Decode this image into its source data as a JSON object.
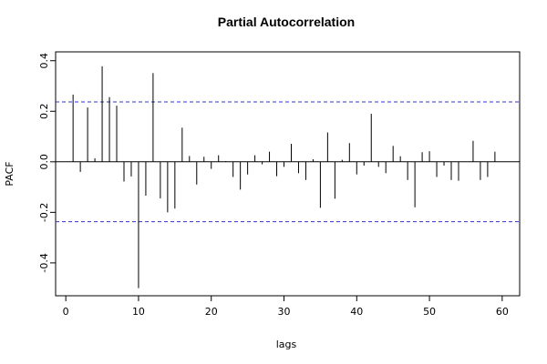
{
  "chart_data": {
    "type": "bar",
    "title": "Partial Autocorrelation",
    "xlabel": "lags",
    "ylabel": "PACF",
    "xlim": [
      -1.4,
      62.4
    ],
    "ylim": [
      -0.53,
      0.435
    ],
    "x_ticks": [
      0,
      10,
      20,
      30,
      40,
      50,
      60
    ],
    "x_tick_labels": [
      "0",
      "10",
      "20",
      "30",
      "40",
      "50",
      "60"
    ],
    "y_ticks": [
      -0.4,
      -0.2,
      0.0,
      0.2,
      0.4
    ],
    "y_tick_labels": [
      "-0.4",
      "-0.2",
      "0.0",
      "0.2",
      "0.4"
    ],
    "confidence_bounds": [
      0.237,
      -0.237
    ],
    "confidence_color": "#3333cc",
    "bar_color": "#000000",
    "grid": false,
    "lags": [
      1,
      2,
      3,
      4,
      5,
      6,
      7,
      8,
      9,
      10,
      11,
      12,
      13,
      14,
      15,
      16,
      17,
      18,
      19,
      20,
      21,
      22,
      23,
      24,
      25,
      26,
      27,
      28,
      29,
      30,
      31,
      32,
      33,
      34,
      35,
      36,
      37,
      38,
      39,
      40,
      41,
      42,
      43,
      44,
      45,
      46,
      47,
      48,
      49,
      50,
      51,
      52,
      53,
      54,
      55,
      56,
      57,
      58,
      59,
      60
    ],
    "values": [
      0.266,
      -0.04,
      0.215,
      0.014,
      0.378,
      0.256,
      0.222,
      -0.078,
      -0.058,
      -0.5,
      -0.134,
      0.351,
      -0.145,
      -0.2,
      -0.185,
      0.135,
      0.023,
      -0.09,
      0.02,
      -0.028,
      0.026,
      0.003,
      -0.06,
      -0.11,
      -0.05,
      0.026,
      -0.01,
      0.04,
      -0.057,
      -0.02,
      0.071,
      -0.045,
      -0.072,
      0.01,
      -0.182,
      0.116,
      -0.146,
      0.008,
      0.074,
      -0.05,
      -0.015,
      0.19,
      -0.02,
      -0.045,
      0.063,
      0.022,
      -0.072,
      -0.18,
      0.038,
      0.042,
      -0.06,
      -0.015,
      -0.072,
      -0.075,
      0.0,
      0.083,
      -0.072,
      -0.06,
      0.04,
      0.0
    ]
  }
}
